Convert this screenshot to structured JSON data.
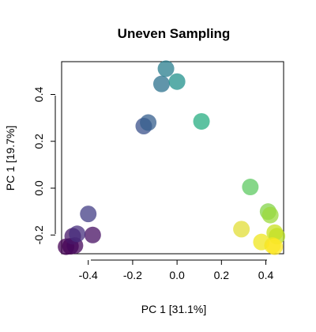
{
  "chart_data": {
    "type": "scatter",
    "title": "Uneven Sampling",
    "xlabel": "PC 1 [31.1%]",
    "ylabel": "PC 1 [19.7%]",
    "xlim": [
      -0.52,
      0.48
    ],
    "ylim": [
      -0.28,
      0.54
    ],
    "xticks": [
      -0.4,
      -0.2,
      0.0,
      0.2,
      0.4
    ],
    "xtick_labels": [
      "-0.4",
      "-0.2",
      "0.0",
      "0.2",
      "0.4"
    ],
    "yticks": [
      -0.2,
      0.0,
      0.2,
      0.4
    ],
    "ytick_labels": [
      "-0.2",
      "0.0",
      "0.2",
      "0.4"
    ],
    "grid": false,
    "legend": "none",
    "point_opacity": 0.75,
    "points": [
      {
        "x": -0.5,
        "y": -0.25,
        "color": "#440154"
      },
      {
        "x": -0.48,
        "y": -0.248,
        "color": "#440154"
      },
      {
        "x": -0.46,
        "y": -0.245,
        "color": "#46085c"
      },
      {
        "x": -0.38,
        "y": -0.2,
        "color": "#471063"
      },
      {
        "x": -0.47,
        "y": -0.205,
        "color": "#48186a"
      },
      {
        "x": -0.45,
        "y": -0.195,
        "color": "#472f7d"
      },
      {
        "x": -0.4,
        "y": -0.11,
        "color": "#433e85"
      },
      {
        "x": -0.15,
        "y": 0.265,
        "color": "#3b528b"
      },
      {
        "x": -0.13,
        "y": 0.28,
        "color": "#355f8d"
      },
      {
        "x": -0.07,
        "y": 0.445,
        "color": "#2c728e"
      },
      {
        "x": -0.05,
        "y": 0.51,
        "color": "#287d8e"
      },
      {
        "x": 0.0,
        "y": 0.455,
        "color": "#21918c"
      },
      {
        "x": 0.11,
        "y": 0.285,
        "color": "#27ad81"
      },
      {
        "x": 0.33,
        "y": 0.005,
        "color": "#5ec962"
      },
      {
        "x": 0.41,
        "y": -0.1,
        "color": "#84d44b"
      },
      {
        "x": 0.42,
        "y": -0.115,
        "color": "#9bd93c"
      },
      {
        "x": 0.45,
        "y": -0.205,
        "color": "#b5de2b"
      },
      {
        "x": 0.44,
        "y": -0.19,
        "color": "#c8e020"
      },
      {
        "x": 0.29,
        "y": -0.175,
        "color": "#e1dd37"
      },
      {
        "x": 0.38,
        "y": -0.23,
        "color": "#efe51c"
      },
      {
        "x": 0.43,
        "y": -0.245,
        "color": "#f6e620"
      },
      {
        "x": 0.44,
        "y": -0.25,
        "color": "#fde725"
      }
    ]
  }
}
